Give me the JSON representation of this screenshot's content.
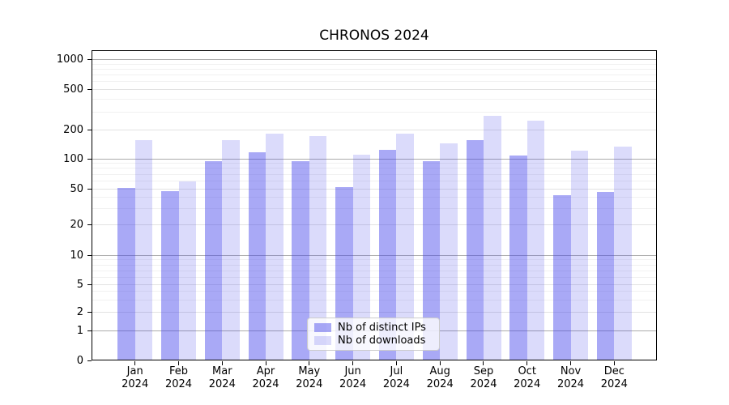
{
  "chart_data": {
    "type": "bar",
    "title": "CHRONOS 2024",
    "yscale": "symlog",
    "grid": true,
    "legend_position": "lower center",
    "ylim": [
      0,
      1300
    ],
    "y_ticks": [
      0,
      1,
      2,
      5,
      10,
      20,
      50,
      100,
      200,
      500,
      1000
    ],
    "y_minor_ticks": [
      3,
      4,
      6,
      7,
      8,
      9,
      30,
      40,
      60,
      70,
      80,
      90,
      300,
      400,
      600,
      700,
      800,
      900
    ],
    "categories": [
      {
        "month": "Jan",
        "year": "2024"
      },
      {
        "month": "Feb",
        "year": "2024"
      },
      {
        "month": "Mar",
        "year": "2024"
      },
      {
        "month": "Apr",
        "year": "2024"
      },
      {
        "month": "May",
        "year": "2024"
      },
      {
        "month": "Jun",
        "year": "2024"
      },
      {
        "month": "Jul",
        "year": "2024"
      },
      {
        "month": "Aug",
        "year": "2024"
      },
      {
        "month": "Sep",
        "year": "2024"
      },
      {
        "month": "Oct",
        "year": "2024"
      },
      {
        "month": "Nov",
        "year": "2024"
      },
      {
        "month": "Dec",
        "year": "2024"
      }
    ],
    "series": [
      {
        "name": "Nb of distinct IPs",
        "color": "rgba(64,64,235,0.45)",
        "values": [
          51,
          47,
          94,
          117,
          95,
          52,
          125,
          94,
          158,
          109,
          42,
          46
        ]
      },
      {
        "name": "Nb of downloads",
        "color": "rgba(64,64,235,0.19)",
        "values": [
          158,
          59,
          157,
          182,
          172,
          110,
          184,
          145,
          277,
          248,
          122,
          133
        ]
      }
    ],
    "colors": {
      "grid_major": "#ababab",
      "grid_mid": "#e2e2e2",
      "grid_minor": "#f1f1f1",
      "axis": "#000000"
    }
  }
}
